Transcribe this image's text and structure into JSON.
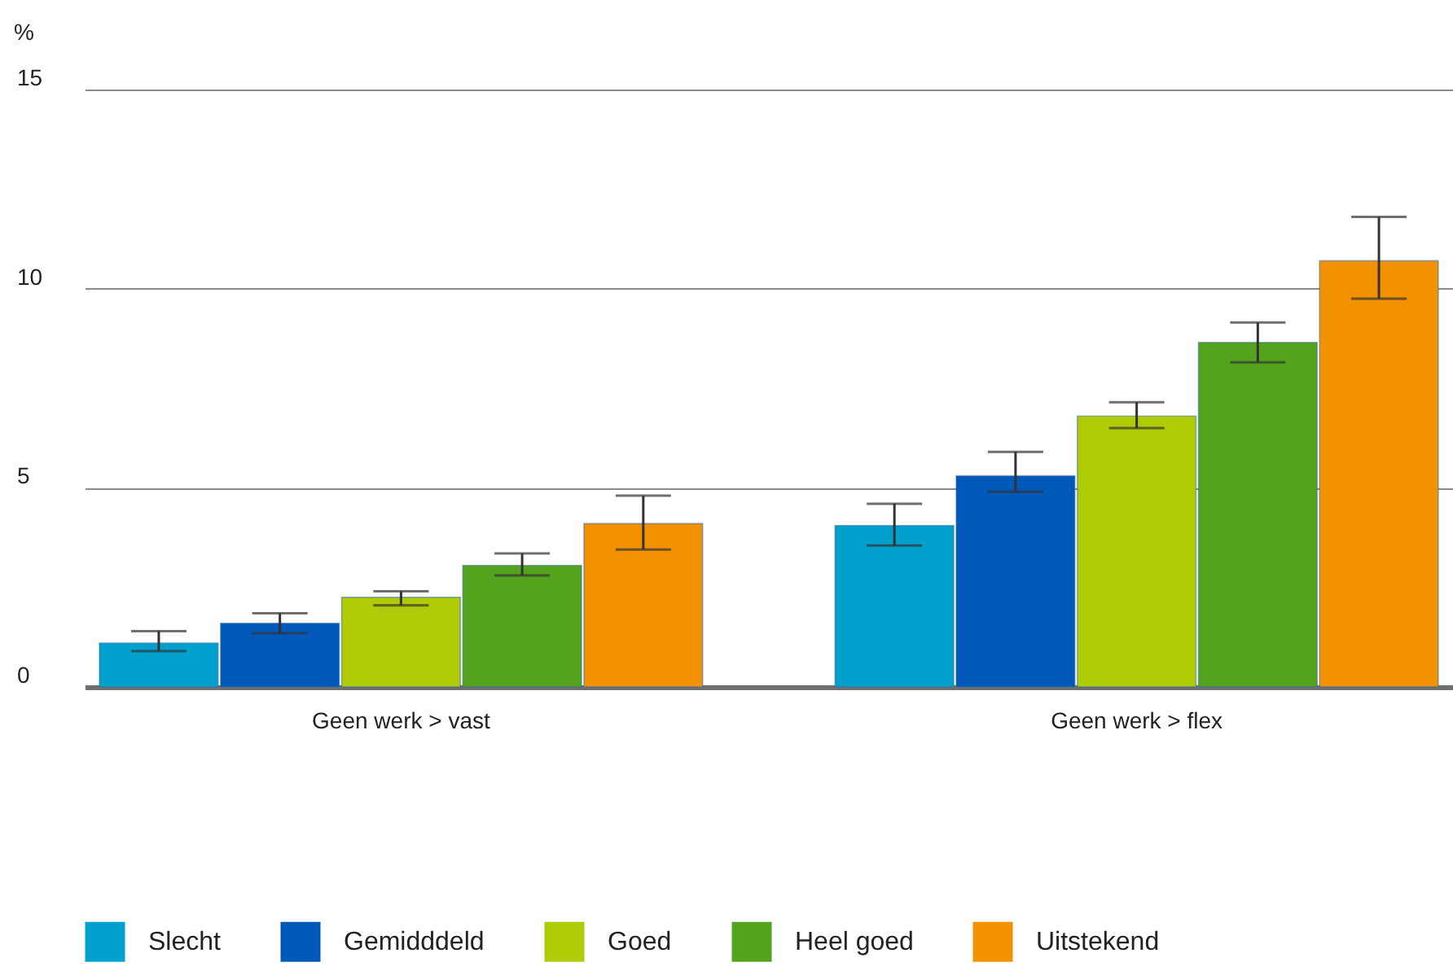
{
  "chart_data": {
    "type": "bar",
    "ylabel": "%",
    "categories": [
      "Geen werk > vast",
      "Geen werk > flex"
    ],
    "series": [
      {
        "name": "Slecht",
        "color": "#00a1cd",
        "values": [
          1.1,
          4.05
        ],
        "errors": [
          [
            0.9,
            1.4
          ],
          [
            3.55,
            4.6
          ]
        ]
      },
      {
        "name": "Gemidddeld",
        "color": "#0058b8",
        "values": [
          1.6,
          5.3
        ],
        "errors": [
          [
            1.35,
            1.85
          ],
          [
            4.9,
            5.9
          ]
        ]
      },
      {
        "name": "Goed",
        "color": "#afcb05",
        "values": [
          2.25,
          6.8
        ],
        "errors": [
          [
            2.05,
            2.4
          ],
          [
            6.5,
            7.15
          ]
        ]
      },
      {
        "name": "Heel goed",
        "color": "#53a31d",
        "values": [
          3.05,
          8.65
        ],
        "errors": [
          [
            2.8,
            3.35
          ],
          [
            8.15,
            9.15
          ]
        ]
      },
      {
        "name": "Uitstekend",
        "color": "#f39200",
        "values": [
          4.1,
          10.7
        ],
        "errors": [
          [
            3.45,
            4.8
          ],
          [
            9.75,
            11.8
          ]
        ]
      }
    ],
    "ylim": [
      0,
      15
    ],
    "yticks": [
      0,
      5,
      10,
      15
    ],
    "grid": "y",
    "legend": "bottom"
  }
}
